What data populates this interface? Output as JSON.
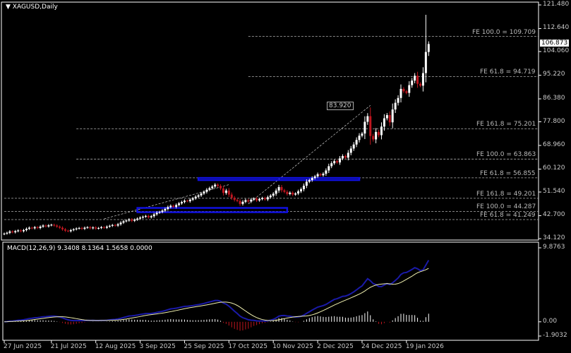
{
  "symbol_title": "XAGUSD,Daily",
  "colors": {
    "background": "#000000",
    "bull": "#ffffff",
    "bear": "#c0161f",
    "fe_line": "#b0b0b0",
    "zone": "#1010e0",
    "macd_line": "#1a1aa8",
    "signal_line": "#f0f0b0",
    "hist_pos": "#ffffff",
    "hist_neg": "#c0161f",
    "grid": "#ffffff"
  },
  "chart_data": [
    {
      "type": "candlestick",
      "price_axis": {
        "ticks": [
          "121.480",
          "112.640",
          "104.060",
          "95.220",
          "86.380",
          "77.800",
          "68.960",
          "60.120",
          "51.540",
          "42.700",
          "34.120"
        ],
        "ylim": [
          34.12,
          121.48
        ]
      },
      "date_axis": [
        {
          "label": "27 Jun 2025",
          "index": 0
        },
        {
          "label": "21 Jul 2025",
          "index": 17
        },
        {
          "label": "12 Aug 2025",
          "index": 33
        },
        {
          "label": "3 Sep 2025",
          "index": 49
        },
        {
          "label": "25 Sep 2025",
          "index": 65
        },
        {
          "label": "17 Oct 2025",
          "index": 81
        },
        {
          "label": "10 Nov 2025",
          "index": 97
        },
        {
          "label": "2 Dec 2025",
          "index": 113
        },
        {
          "label": "24 Dec 2025",
          "index": 129
        },
        {
          "label": "19 Jan 2026",
          "index": 145
        }
      ],
      "closes": [
        36.0,
        36.3,
        36.8,
        36.5,
        36.9,
        37.2,
        36.9,
        37.3,
        37.8,
        38.2,
        38.0,
        38.4,
        38.1,
        38.6,
        39.0,
        38.7,
        39.1,
        39.3,
        39.0,
        38.6,
        38.2,
        37.6,
        37.1,
        36.9,
        37.3,
        37.6,
        37.9,
        38.1,
        37.8,
        38.2,
        38.4,
        38.0,
        38.3,
        37.9,
        38.1,
        38.4,
        38.2,
        38.6,
        38.9,
        39.2,
        39.0,
        39.5,
        40.1,
        40.6,
        40.9,
        41.3,
        40.8,
        41.2,
        41.6,
        42.0,
        42.3,
        42.6,
        42.1,
        42.5,
        43.2,
        43.8,
        44.1,
        44.6,
        45.2,
        45.9,
        46.4,
        46.0,
        46.7,
        47.3,
        47.8,
        48.3,
        48.1,
        48.7,
        49.2,
        49.8,
        50.3,
        51.0,
        51.6,
        52.4,
        53.0,
        53.6,
        54.3,
        53.8,
        52.9,
        51.2,
        52.1,
        50.6,
        49.4,
        48.6,
        48.2,
        47.1,
        47.9,
        48.5,
        48.0,
        48.7,
        49.1,
        48.4,
        48.9,
        49.3,
        48.8,
        49.6,
        50.2,
        50.9,
        52.1,
        53.4,
        52.2,
        51.6,
        50.8,
        51.3,
        50.6,
        51.0,
        51.8,
        52.6,
        53.9,
        55.4,
        56.0,
        56.8,
        57.4,
        58.2,
        57.8,
        58.4,
        59.6,
        61.2,
        62.3,
        63.1,
        62.6,
        64.1,
        65.0,
        64.4,
        66.2,
        67.8,
        69.3,
        71.0,
        72.6,
        73.4,
        77.8,
        79.9,
        72.5,
        71.2,
        74.0,
        72.8,
        76.0,
        79.1,
        80.3,
        77.6,
        82.4,
        84.9,
        86.7,
        90.1,
        89.2,
        88.6,
        91.5,
        93.2,
        95.0,
        92.0,
        91.3,
        96.0,
        103.9,
        106.873
      ],
      "last_high": 117.8,
      "current_price": "106.873",
      "peak_label": "83.920",
      "fe_levels": [
        {
          "label": "FE 100.0 = 109.709",
          "value": 109.709,
          "from_index": 88
        },
        {
          "label": "FE 61.8 = 94.719",
          "value": 94.719,
          "from_index": 88
        },
        {
          "label": "FE 161.8 = 75.201",
          "value": 75.201,
          "from_index": 26
        },
        {
          "label": "FE 100.0 = 63.863",
          "value": 63.863,
          "from_index": 26
        },
        {
          "label": "FE 61.8 = 56.855",
          "value": 56.855,
          "from_index": 26
        },
        {
          "label": "FE 161.8 = 49.201",
          "value": 49.201,
          "from_index": 0
        },
        {
          "label": "FE 100.0 = 44.287",
          "value": 44.287,
          "from_index": 0
        },
        {
          "label": "FE 61.8 = 41.249",
          "value": 41.249,
          "from_index": 0
        }
      ],
      "zones": [
        {
          "from_index": 70,
          "to_index": 128,
          "low": 56.0,
          "high": 56.8
        },
        {
          "from_index": 48,
          "to_index": 102,
          "low": 44.0,
          "high": 45.6
        }
      ],
      "trend_lines": [
        [
          [
            36,
            41.5
          ],
          [
            81,
            54.3
          ]
        ],
        [
          [
            88,
            47.1
          ],
          [
            132,
            83.92
          ]
        ]
      ]
    },
    {
      "type": "macd",
      "title": "MACD(12,26,9) 9.3408 8.1364 1.5658 0.0000",
      "ticks": [
        "9.8763",
        "0.00",
        "-1.9032"
      ],
      "ylim": [
        -1.9032,
        9.8763
      ],
      "params": [
        12,
        26,
        9
      ]
    }
  ]
}
